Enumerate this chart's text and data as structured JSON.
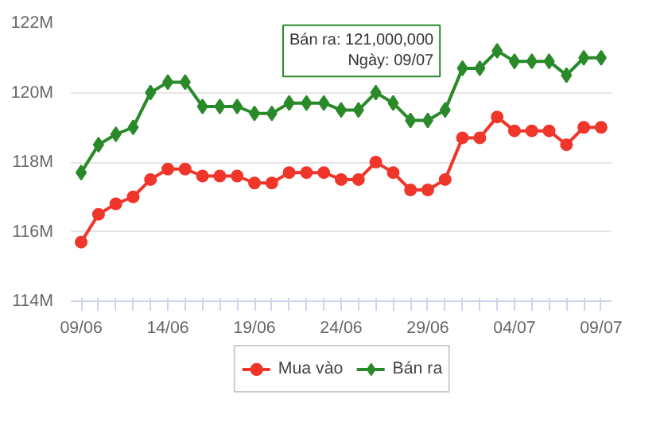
{
  "chart_data": {
    "type": "line",
    "categories": [
      "09/06",
      null,
      null,
      null,
      null,
      "14/06",
      null,
      null,
      null,
      null,
      "19/06",
      null,
      null,
      null,
      null,
      "24/06",
      null,
      null,
      null,
      null,
      "29/06",
      null,
      null,
      null,
      null,
      "04/07",
      null,
      null,
      null,
      null,
      "09/07"
    ],
    "series": [
      {
        "name": "Mua vào",
        "color": "#f0362a",
        "marker": "circle",
        "values": [
          115.7,
          116.5,
          116.8,
          117.0,
          117.5,
          117.8,
          117.8,
          117.6,
          117.6,
          117.6,
          117.4,
          117.4,
          117.7,
          117.7,
          117.7,
          117.5,
          117.5,
          118.0,
          117.7,
          117.2,
          117.2,
          117.5,
          118.7,
          118.7,
          119.3,
          118.9,
          118.9,
          118.9,
          118.5,
          119.0,
          119.0
        ]
      },
      {
        "name": "Bán ra",
        "color": "#2a8a2a",
        "marker": "diamond",
        "values": [
          117.7,
          118.5,
          118.8,
          119.0,
          120.0,
          120.3,
          120.3,
          119.6,
          119.6,
          119.6,
          119.4,
          119.4,
          119.7,
          119.7,
          119.7,
          119.5,
          119.5,
          120.0,
          119.7,
          119.2,
          119.2,
          119.5,
          120.7,
          120.7,
          121.2,
          120.9,
          120.9,
          120.9,
          120.5,
          121.0,
          121.0
        ]
      }
    ],
    "ylim": [
      114,
      122
    ],
    "yticks": [
      {
        "value": 114,
        "label": "114M"
      },
      {
        "value": 116,
        "label": "116M"
      },
      {
        "value": 118,
        "label": "118M"
      },
      {
        "value": 120,
        "label": "120M"
      },
      {
        "value": 122,
        "label": "122M"
      }
    ],
    "grid": "y",
    "legend": "bottom",
    "line_style": "solid",
    "annotations": [
      "Bán ra: 121,000,000\nNgày: 09/07"
    ]
  }
}
